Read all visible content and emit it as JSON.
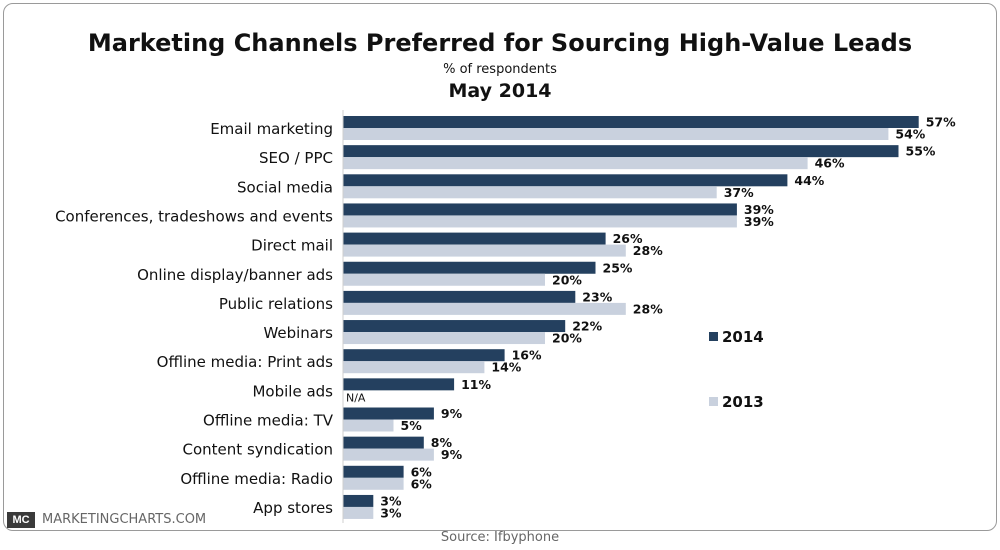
{
  "header": {
    "title": "Marketing Channels Preferred for Sourcing High-Value Leads",
    "subtitle": "% of respondents",
    "date": "May 2014"
  },
  "footer": {
    "logo": "MC",
    "site": "MARKETINGCHARTS.COM",
    "source": "Source: Ifbyphone"
  },
  "colors": {
    "series_2014": "#24405f",
    "series_2013": "#c9d1de"
  },
  "chart_data": {
    "type": "bar",
    "orientation": "horizontal",
    "title": "Marketing Channels Preferred for Sourcing High-Value Leads",
    "subtitle": "% of respondents",
    "categories": [
      "Email marketing",
      "SEO / PPC",
      "Social media",
      "Conferences, tradeshows and events",
      "Direct mail",
      "Online display/banner ads",
      "Public relations",
      "Webinars",
      "Offline media: Print ads",
      "Mobile ads",
      "Offline media: TV",
      "Content syndication",
      "Offline media: Radio",
      "App stores"
    ],
    "series": [
      {
        "name": "2014",
        "values": [
          57,
          55,
          44,
          39,
          26,
          25,
          23,
          22,
          16,
          11,
          9,
          8,
          6,
          3
        ],
        "labels": [
          "57%",
          "55%",
          "44%",
          "39%",
          "26%",
          "25%",
          "23%",
          "22%",
          "16%",
          "11%",
          "9%",
          "8%",
          "6%",
          "3%"
        ]
      },
      {
        "name": "2013",
        "values": [
          54,
          46,
          37,
          39,
          28,
          20,
          28,
          20,
          14,
          null,
          5,
          9,
          6,
          3
        ],
        "labels": [
          "54%",
          "46%",
          "37%",
          "39%",
          "28%",
          "20%",
          "28%",
          "20%",
          "14%",
          "N/A",
          "5%",
          "9%",
          "6%",
          "3%"
        ]
      }
    ],
    "legend": "right",
    "grid": false,
    "xlim": [
      0,
      57
    ]
  }
}
